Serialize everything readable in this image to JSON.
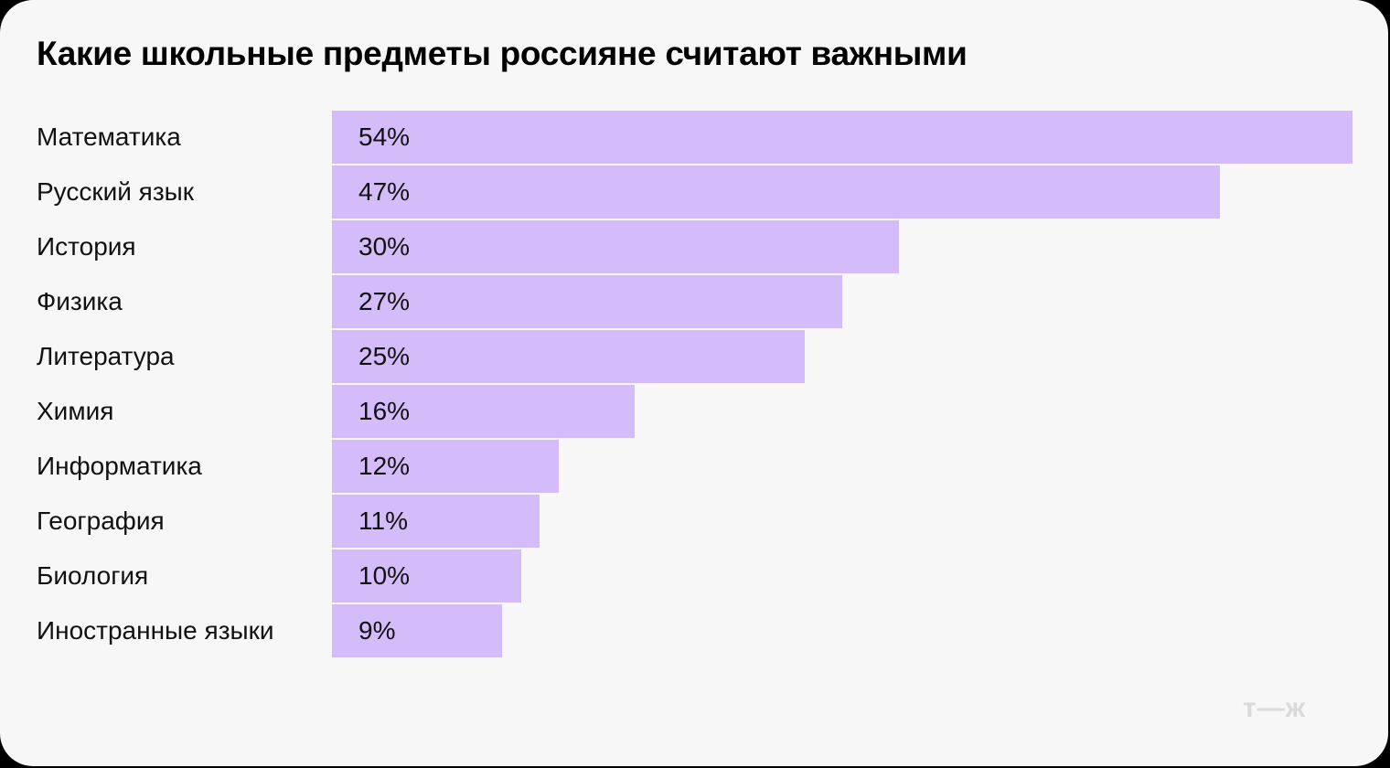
{
  "title": "Какие школьные предметы россияне считают важными",
  "logo": "т—ж",
  "rows": [
    {
      "label": "Математика",
      "value_label": "54%"
    },
    {
      "label": "Русский язык",
      "value_label": "47%"
    },
    {
      "label": "История",
      "value_label": "30%"
    },
    {
      "label": "Физика",
      "value_label": "27%"
    },
    {
      "label": "Литература",
      "value_label": "25%"
    },
    {
      "label": "Химия",
      "value_label": "16%"
    },
    {
      "label": "Информатика",
      "value_label": "12%"
    },
    {
      "label": "География",
      "value_label": "11%"
    },
    {
      "label": "Биология",
      "value_label": "10%"
    },
    {
      "label": "Иностранные языки",
      "value_label": "9%"
    }
  ],
  "colors": {
    "bar": "#d4bbf9",
    "background": "#f7f7f7",
    "text": "#111111",
    "logo": "#dadada"
  },
  "chart_data": {
    "type": "bar",
    "orientation": "horizontal",
    "title": "Какие школьные предметы россияне считают важными",
    "categories": [
      "Математика",
      "Русский язык",
      "История",
      "Физика",
      "Литература",
      "Химия",
      "Информатика",
      "География",
      "Биология",
      "Иностранные языки"
    ],
    "values": [
      54,
      47,
      30,
      27,
      25,
      16,
      12,
      11,
      10,
      9
    ],
    "unit": "%",
    "xlabel": "",
    "ylabel": "",
    "grid": false,
    "legend": null,
    "data_labels": true
  }
}
